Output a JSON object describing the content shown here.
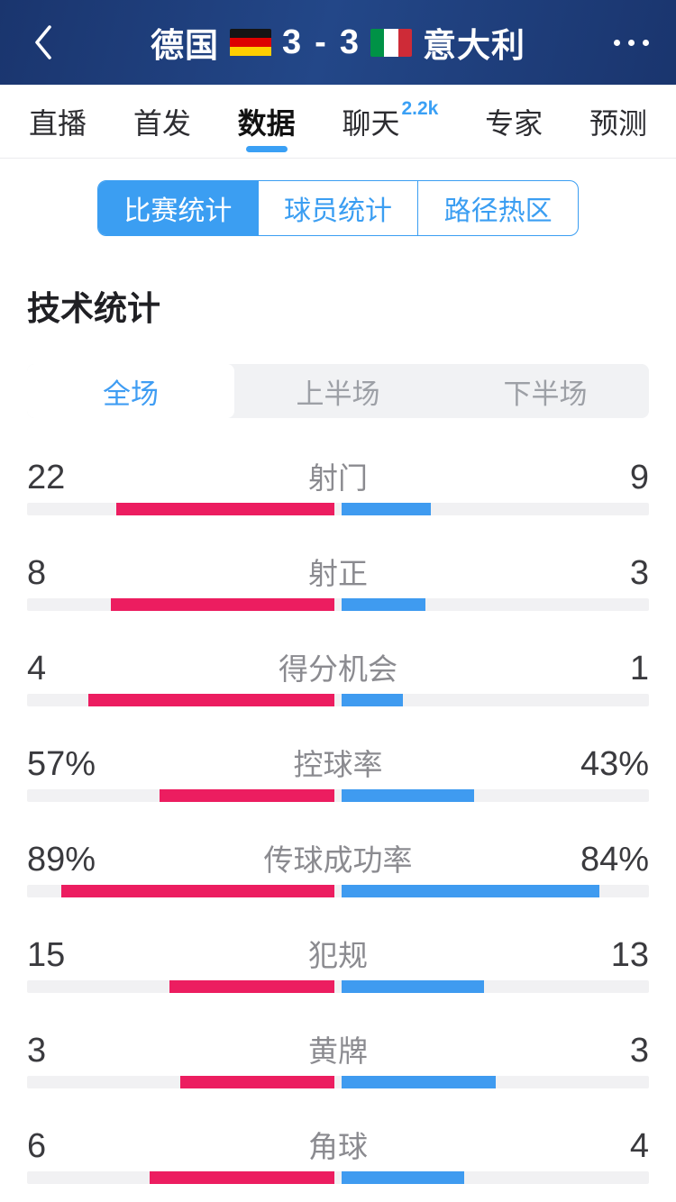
{
  "header": {
    "home_team": "德国",
    "away_team": "意大利",
    "home_score": "3",
    "score_separator": "-",
    "away_score": "3",
    "icons": {
      "back": "chevron-left",
      "more": "ellipsis-horizontal"
    },
    "flags": {
      "home": {
        "type": "germany",
        "stripes": [
          "#141414",
          "#dd0000",
          "#ffce00"
        ]
      },
      "away": {
        "type": "italy",
        "stripes": [
          "#009246",
          "#ffffff",
          "#ce2b37"
        ]
      }
    }
  },
  "nav_tabs": [
    {
      "label": "直播",
      "active": false
    },
    {
      "label": "首发",
      "active": false
    },
    {
      "label": "数据",
      "active": true
    },
    {
      "label": "聊天",
      "active": false,
      "badge": "2.2k"
    },
    {
      "label": "专家",
      "active": false
    },
    {
      "label": "预测",
      "active": false
    }
  ],
  "sub_tabs": [
    {
      "label": "比赛统计",
      "active": true
    },
    {
      "label": "球员统计",
      "active": false
    },
    {
      "label": "路径热区",
      "active": false
    }
  ],
  "section_title": "技术统计",
  "period_tabs": [
    {
      "label": "全场",
      "active": true
    },
    {
      "label": "上半场",
      "active": false
    },
    {
      "label": "下半场",
      "active": false
    }
  ],
  "chart_data": {
    "type": "bar",
    "title": "技术统计 全场 德国 vs 意大利",
    "legend": [
      "德国",
      "意大利"
    ],
    "categories": [
      "射门",
      "射正",
      "得分机会",
      "控球率",
      "传球成功率",
      "犯规",
      "黄牌",
      "角球"
    ],
    "series": [
      {
        "name": "德国",
        "values": [
          22,
          8,
          4,
          57,
          89,
          15,
          3,
          6
        ]
      },
      {
        "name": "意大利",
        "values": [
          9,
          3,
          1,
          43,
          84,
          13,
          3,
          4
        ]
      }
    ]
  },
  "stats_rows": [
    {
      "label": "射门",
      "home": "22",
      "away": "9",
      "home_value": 22,
      "away_value": 9,
      "percent": false
    },
    {
      "label": "射正",
      "home": "8",
      "away": "3",
      "home_value": 8,
      "away_value": 3,
      "percent": false
    },
    {
      "label": "得分机会",
      "home": "4",
      "away": "1",
      "home_value": 4,
      "away_value": 1,
      "percent": false
    },
    {
      "label": "控球率",
      "home": "57%",
      "away": "43%",
      "home_value": 57,
      "away_value": 43,
      "percent": true
    },
    {
      "label": "传球成功率",
      "home": "89%",
      "away": "84%",
      "home_value": 89,
      "away_value": 84,
      "percent": true
    },
    {
      "label": "犯规",
      "home": "15",
      "away": "13",
      "home_value": 15,
      "away_value": 13,
      "percent": false
    },
    {
      "label": "黄牌",
      "home": "3",
      "away": "3",
      "home_value": 3,
      "away_value": 3,
      "percent": false
    },
    {
      "label": "角球",
      "home": "6",
      "away": "4",
      "home_value": 6,
      "away_value": 4,
      "percent": false
    }
  ],
  "colors": {
    "header_navy": "#1d3b7a",
    "accent_blue": "#3aa0f5",
    "home_bar": "#ec1d60",
    "away_bar": "#3f9bf0",
    "bar_track": "#f1f1f3"
  }
}
